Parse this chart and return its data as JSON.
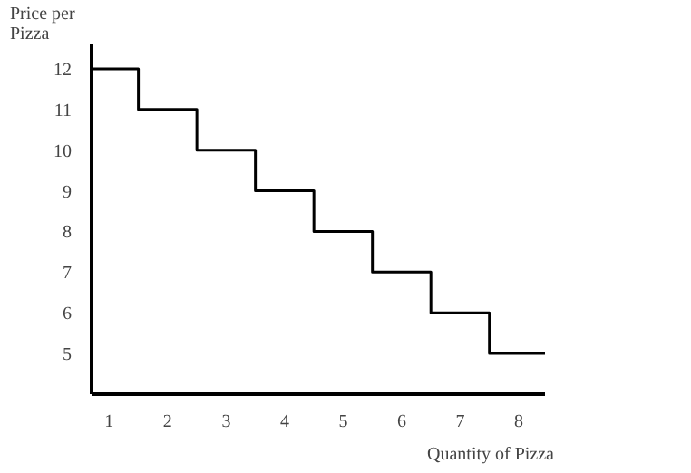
{
  "chart_data": {
    "type": "step",
    "xlabel": "Quantity of Pizza",
    "ylabel": "Price per\nPizza",
    "x": [
      1,
      2,
      3,
      4,
      5,
      6,
      7,
      8
    ],
    "series": [
      {
        "color": "#000000",
        "values": [
          12,
          11,
          10,
          9,
          8,
          7,
          6,
          5
        ]
      }
    ],
    "xlim": [
      0.7,
      8.45
    ],
    "ylim": [
      4,
      12.6
    ],
    "xticks": [
      1,
      2,
      3,
      4,
      5,
      6,
      7,
      8
    ],
    "yticks": [
      5,
      6,
      7,
      8,
      9,
      10,
      11,
      12
    ],
    "grid": false,
    "line_style": "solid",
    "marker": "none"
  }
}
